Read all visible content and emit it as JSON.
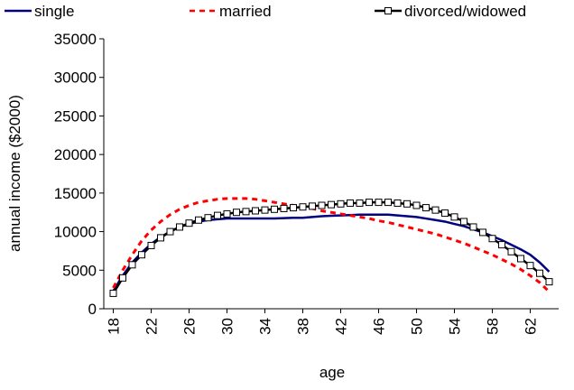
{
  "chart_data": {
    "type": "line",
    "x_label": "age",
    "y_label": "annual income ($2000)",
    "x": [
      18,
      19,
      20,
      21,
      22,
      23,
      24,
      25,
      26,
      27,
      28,
      29,
      30,
      31,
      32,
      33,
      34,
      35,
      36,
      37,
      38,
      39,
      40,
      41,
      42,
      43,
      44,
      45,
      46,
      47,
      48,
      49,
      50,
      51,
      52,
      53,
      54,
      55,
      56,
      57,
      58,
      59,
      60,
      61,
      62,
      63,
      64
    ],
    "series": [
      {
        "name": "single",
        "color": "#000080",
        "line_style": "solid",
        "marker": "none",
        "values": [
          2300,
          4300,
          6000,
          7300,
          8400,
          9300,
          10000,
          10600,
          11000,
          11300,
          11500,
          11600,
          11700,
          11700,
          11700,
          11700,
          11700,
          11700,
          11750,
          11800,
          11800,
          11900,
          12000,
          12050,
          12100,
          12150,
          12200,
          12200,
          12200,
          12200,
          12100,
          12000,
          11900,
          11700,
          11500,
          11300,
          11000,
          10700,
          10300,
          9900,
          9400,
          8900,
          8300,
          7700,
          7000,
          6000,
          4800
        ]
      },
      {
        "name": "married",
        "color": "#ff0000",
        "line_style": "dashed",
        "marker": "none",
        "values": [
          2700,
          5000,
          7000,
          8800,
          10200,
          11300,
          12200,
          12900,
          13400,
          13800,
          14000,
          14200,
          14300,
          14300,
          14300,
          14200,
          14000,
          13800,
          13600,
          13400,
          13200,
          13000,
          12700,
          12500,
          12300,
          12100,
          11900,
          11700,
          11400,
          11200,
          10900,
          10600,
          10300,
          10000,
          9700,
          9300,
          8900,
          8500,
          8000,
          7500,
          7000,
          6400,
          5800,
          5100,
          4300,
          3400,
          2200
        ]
      },
      {
        "name": "divorced/widowed",
        "color": "#000000",
        "line_style": "solid",
        "marker": "square",
        "values": [
          2000,
          4000,
          5700,
          7000,
          8200,
          9200,
          10000,
          10600,
          11100,
          11500,
          11800,
          12100,
          12300,
          12500,
          12600,
          12700,
          12800,
          12900,
          13000,
          13100,
          13200,
          13300,
          13400,
          13500,
          13600,
          13700,
          13700,
          13800,
          13800,
          13800,
          13700,
          13600,
          13400,
          13100,
          12800,
          12400,
          11900,
          11300,
          10600,
          9900,
          9100,
          8300,
          7400,
          6500,
          5600,
          4600,
          3500
        ]
      }
    ],
    "xlim": [
      17,
      65
    ],
    "xticks": [
      18,
      22,
      26,
      30,
      34,
      38,
      42,
      46,
      50,
      54,
      58,
      62
    ],
    "ylim": [
      0,
      35000
    ],
    "yticks": [
      0,
      5000,
      10000,
      15000,
      20000,
      25000,
      30000,
      35000
    ],
    "grid": false,
    "legend_position": "top"
  }
}
